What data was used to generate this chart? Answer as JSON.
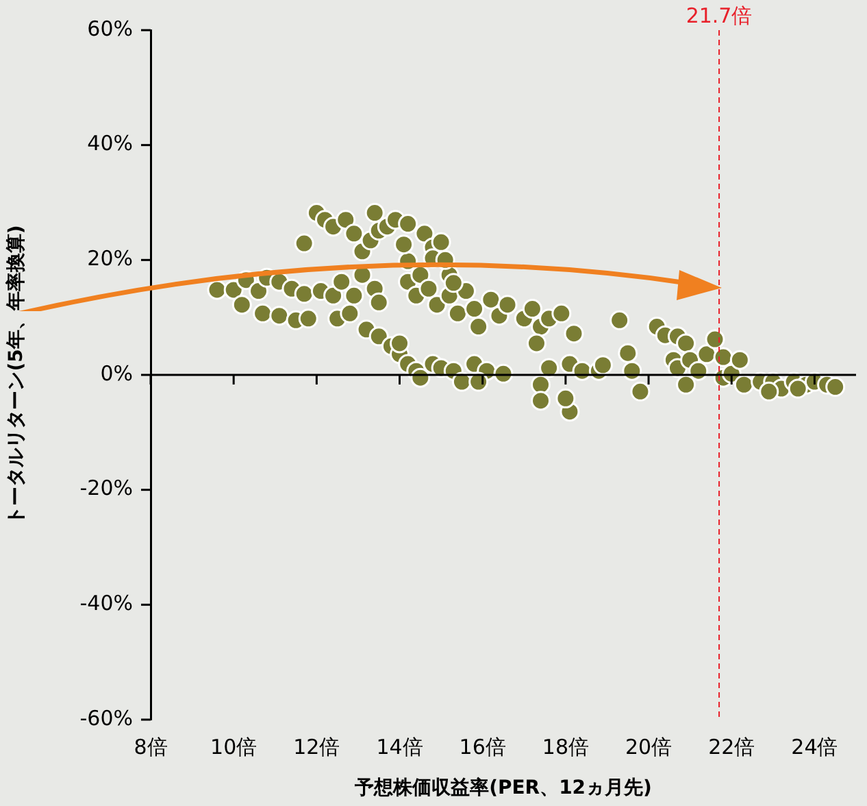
{
  "chart_data": {
    "type": "scatter",
    "xlabel": "予想株価収益率(PER、12ヵ月先)",
    "ylabel": "トータルリターン(5年、年率換算)",
    "xlim": [
      8,
      25
    ],
    "ylim": [
      -60,
      60
    ],
    "xticks": [
      {
        "value": 8,
        "label": "8倍"
      },
      {
        "value": 10,
        "label": "10倍"
      },
      {
        "value": 12,
        "label": "12倍"
      },
      {
        "value": 14,
        "label": "14倍"
      },
      {
        "value": 16,
        "label": "16倍"
      },
      {
        "value": 18,
        "label": "18倍"
      },
      {
        "value": 20,
        "label": "20倍"
      },
      {
        "value": 22,
        "label": "22倍"
      },
      {
        "value": 24,
        "label": "24倍"
      }
    ],
    "yticks": [
      {
        "value": -60,
        "label": "-60%"
      },
      {
        "value": -40,
        "label": "-40%"
      },
      {
        "value": -20,
        "label": "-20%"
      },
      {
        "value": 0,
        "label": "0%"
      },
      {
        "value": 20,
        "label": "20%"
      },
      {
        "value": 40,
        "label": "40%"
      },
      {
        "value": 60,
        "label": "60%"
      }
    ],
    "grid": false,
    "legend": false,
    "marker": "circle",
    "ref_lines": [
      {
        "axis": "y",
        "value": 0,
        "color": "#000000",
        "line_style": "solid"
      },
      {
        "axis": "x",
        "value": 21.7,
        "label": "21.7倍",
        "color": "#e8202a",
        "line_style": "dashed"
      }
    ],
    "series": [
      {
        "color": "#7a7d34",
        "x": [
          9.6,
          10.0,
          10.3,
          10.2,
          10.6,
          10.8,
          10.7,
          11.1,
          11.1,
          11.4,
          11.5,
          11.7,
          11.7,
          11.8,
          12.0,
          12.2,
          12.4,
          12.1,
          12.4,
          12.5,
          12.6,
          12.8,
          12.9,
          12.7,
          12.9,
          13.1,
          13.3,
          13.4,
          13.5,
          13.7,
          13.9,
          13.1,
          13.4,
          13.5,
          13.2,
          13.5,
          13.8,
          14.0,
          14.2,
          14.4,
          14.0,
          14.5,
          14.2,
          14.4,
          14.2,
          14.1,
          14.2,
          14.6,
          14.8,
          14.8,
          14.5,
          14.7,
          14.9,
          15.0,
          15.2,
          15.2,
          15.4,
          14.8,
          15.0,
          15.3,
          15.5,
          15.8,
          16.1,
          16.5,
          15.9,
          15.6,
          15.8,
          15.9,
          16.2,
          16.4,
          16.6,
          17.0,
          17.2,
          17.4,
          17.6,
          17.3,
          17.6,
          17.4,
          17.4,
          17.9,
          18.2,
          18.1,
          18.4,
          18.1,
          18.0,
          18.8,
          18.9,
          19.3,
          19.5,
          19.6,
          19.8,
          20.2,
          20.4,
          20.7,
          20.9,
          20.6,
          20.7,
          20.9,
          21.0,
          21.2,
          21.4,
          21.6,
          21.8,
          22.0,
          21.8,
          22.2,
          22.3,
          22.7,
          23.0,
          23.2,
          23.5,
          23.8,
          24.0,
          24.3,
          24.5,
          22.9,
          23.6,
          15.1,
          15.3
        ],
        "values": [
          14.8,
          14.8,
          16.5,
          12.2,
          14.6,
          16.9,
          10.7,
          16.2,
          10.3,
          15.0,
          9.5,
          14.1,
          22.9,
          9.8,
          28.2,
          27.0,
          25.8,
          14.6,
          13.8,
          9.8,
          16.2,
          10.7,
          13.8,
          27.0,
          24.6,
          21.5,
          23.4,
          28.2,
          25.1,
          25.8,
          27.0,
          17.4,
          15.0,
          12.6,
          7.9,
          6.7,
          5.0,
          3.6,
          1.9,
          0.7,
          5.5,
          -0.5,
          16.2,
          13.8,
          19.8,
          22.7,
          26.3,
          24.6,
          22.2,
          20.3,
          17.4,
          15.0,
          12.2,
          23.1,
          17.4,
          13.8,
          10.7,
          1.9,
          1.2,
          0.7,
          -1.2,
          1.9,
          0.7,
          0.2,
          -1.2,
          14.6,
          11.5,
          8.4,
          13.1,
          10.3,
          12.2,
          9.8,
          11.5,
          8.4,
          9.8,
          5.5,
          1.2,
          -1.7,
          -4.5,
          10.7,
          7.2,
          1.9,
          0.7,
          -6.4,
          -4.1,
          0.7,
          1.7,
          9.5,
          3.8,
          0.7,
          -2.9,
          8.4,
          6.9,
          6.7,
          5.5,
          2.6,
          1.2,
          -1.7,
          2.6,
          0.7,
          3.6,
          6.2,
          -0.5,
          0.2,
          3.1,
          2.6,
          -1.7,
          -1.2,
          -1.2,
          -2.4,
          -1.2,
          -1.7,
          -1.2,
          -1.7,
          -2.1,
          -2.9,
          -2.4,
          20.0,
          16.0
        ]
      }
    ]
  }
}
